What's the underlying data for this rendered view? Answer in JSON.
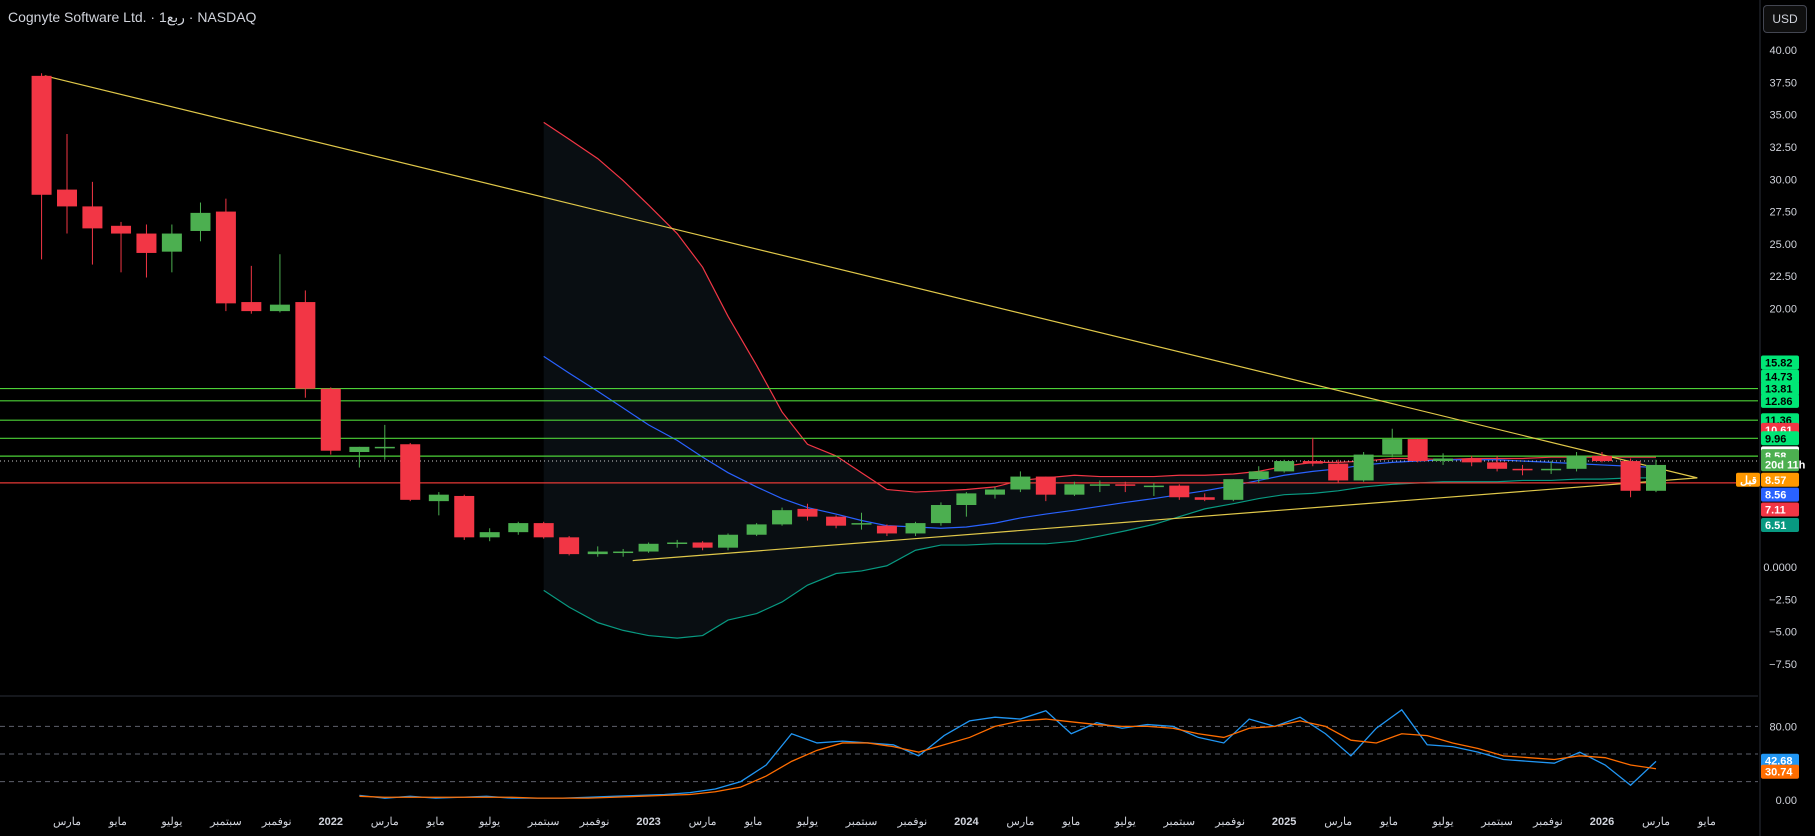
{
  "header": {
    "title": "Cognyte Software Ltd. · 1ربع · NASDAQ",
    "currency": "USD"
  },
  "colors": {
    "background": "#000000",
    "up": "#4caf50",
    "down": "#f23645",
    "trendline": "#e0c84a",
    "support_line": "#4cd137",
    "resistance_line": "#e53935",
    "band_upper": "#f23645",
    "band_mid": "#2962ff",
    "band_lower": "#089981",
    "stoch_k": "#2196f3",
    "stoch_d": "#ff6d00"
  },
  "chart_data": [
    {
      "type": "candlestick",
      "y_ticks": [
        "40.00",
        "37.50",
        "35.00",
        "32.50",
        "30.00",
        "27.50",
        "25.00",
        "22.50",
        "20.00",
        "0.0000",
        "−2.50",
        "−5.00",
        "−7.50"
      ],
      "y_tick_values": [
        40,
        37.5,
        35,
        32.5,
        30,
        27.5,
        25,
        22.5,
        20,
        0,
        -2.5,
        -5,
        -7.5
      ],
      "x_labels": [
        {
          "label": "مارس",
          "x": 2021.17,
          "bold": false
        },
        {
          "label": "مايو",
          "x": 2021.33,
          "bold": false
        },
        {
          "label": "يوليو",
          "x": 2021.5,
          "bold": false
        },
        {
          "label": "سبتمبر",
          "x": 2021.67,
          "bold": false
        },
        {
          "label": "نوفمبر",
          "x": 2021.83,
          "bold": false
        },
        {
          "label": "2022",
          "x": 2022.0,
          "bold": true
        },
        {
          "label": "مارس",
          "x": 2022.17,
          "bold": false
        },
        {
          "label": "مايو",
          "x": 2022.33,
          "bold": false
        },
        {
          "label": "يوليو",
          "x": 2022.5,
          "bold": false
        },
        {
          "label": "سبتمبر",
          "x": 2022.67,
          "bold": false
        },
        {
          "label": "نوفمبر",
          "x": 2022.83,
          "bold": false
        },
        {
          "label": "2023",
          "x": 2023.0,
          "bold": true
        },
        {
          "label": "مارس",
          "x": 2023.17,
          "bold": false
        },
        {
          "label": "مايو",
          "x": 2023.33,
          "bold": false
        },
        {
          "label": "يوليو",
          "x": 2023.5,
          "bold": false
        },
        {
          "label": "سبتمبر",
          "x": 2023.67,
          "bold": false
        },
        {
          "label": "نوفمبر",
          "x": 2023.83,
          "bold": false
        },
        {
          "label": "2024",
          "x": 2024.0,
          "bold": true
        },
        {
          "label": "مارس",
          "x": 2024.17,
          "bold": false
        },
        {
          "label": "مايو",
          "x": 2024.33,
          "bold": false
        },
        {
          "label": "يوليو",
          "x": 2024.5,
          "bold": false
        },
        {
          "label": "سبتمبر",
          "x": 2024.67,
          "bold": false
        },
        {
          "label": "نوفمبر",
          "x": 2024.83,
          "bold": false
        },
        {
          "label": "2025",
          "x": 2025.0,
          "bold": true
        },
        {
          "label": "مارس",
          "x": 2025.17,
          "bold": false
        },
        {
          "label": "مايو",
          "x": 2025.33,
          "bold": false
        },
        {
          "label": "يوليو",
          "x": 2025.5,
          "bold": false
        },
        {
          "label": "سبتمبر",
          "x": 2025.67,
          "bold": false
        },
        {
          "label": "نوفمبر",
          "x": 2025.83,
          "bold": false
        },
        {
          "label": "2026",
          "x": 2026.0,
          "bold": true
        },
        {
          "label": "مارس",
          "x": 2026.17,
          "bold": false
        },
        {
          "label": "مايو",
          "x": 2026.33,
          "bold": false
        }
      ],
      "candles": [
        {
          "x": 2021.09,
          "o": 38.0,
          "h": 38.2,
          "l": 23.8,
          "c": 28.8
        },
        {
          "x": 2021.17,
          "o": 29.2,
          "h": 33.5,
          "l": 25.8,
          "c": 27.9
        },
        {
          "x": 2021.25,
          "o": 27.9,
          "h": 29.8,
          "l": 23.4,
          "c": 26.2
        },
        {
          "x": 2021.34,
          "o": 26.4,
          "h": 26.7,
          "l": 22.8,
          "c": 25.8
        },
        {
          "x": 2021.42,
          "o": 25.8,
          "h": 26.5,
          "l": 22.4,
          "c": 24.3
        },
        {
          "x": 2021.5,
          "o": 24.4,
          "h": 26.5,
          "l": 22.8,
          "c": 25.8
        },
        {
          "x": 2021.59,
          "o": 26.0,
          "h": 28.2,
          "l": 25.2,
          "c": 27.4
        },
        {
          "x": 2021.67,
          "o": 27.5,
          "h": 28.5,
          "l": 19.8,
          "c": 20.4
        },
        {
          "x": 2021.75,
          "o": 20.5,
          "h": 23.3,
          "l": 19.6,
          "c": 19.8
        },
        {
          "x": 2021.84,
          "o": 19.8,
          "h": 24.2,
          "l": 19.7,
          "c": 20.3
        },
        {
          "x": 2021.92,
          "o": 20.5,
          "h": 21.4,
          "l": 13.1,
          "c": 13.8
        },
        {
          "x": 2022.0,
          "o": 13.8,
          "h": 13.9,
          "l": 8.7,
          "c": 9.0
        },
        {
          "x": 2022.09,
          "o": 8.9,
          "h": 9.3,
          "l": 7.7,
          "c": 9.3
        },
        {
          "x": 2022.17,
          "o": 9.3,
          "h": 11.0,
          "l": 8.3,
          "c": 9.3
        },
        {
          "x": 2022.25,
          "o": 9.5,
          "h": 9.6,
          "l": 5.1,
          "c": 5.2
        },
        {
          "x": 2022.34,
          "o": 5.1,
          "h": 5.8,
          "l": 4.0,
          "c": 5.6
        },
        {
          "x": 2022.42,
          "o": 5.5,
          "h": 5.6,
          "l": 2.1,
          "c": 2.3
        },
        {
          "x": 2022.5,
          "o": 2.3,
          "h": 3.0,
          "l": 2.0,
          "c": 2.7
        },
        {
          "x": 2022.59,
          "o": 2.7,
          "h": 3.5,
          "l": 2.5,
          "c": 3.4
        },
        {
          "x": 2022.67,
          "o": 3.4,
          "h": 3.5,
          "l": 2.2,
          "c": 2.3
        },
        {
          "x": 2022.75,
          "o": 2.3,
          "h": 2.4,
          "l": 0.9,
          "c": 1.0
        },
        {
          "x": 2022.84,
          "o": 1.0,
          "h": 1.6,
          "l": 0.8,
          "c": 1.2
        },
        {
          "x": 2022.92,
          "o": 1.2,
          "h": 1.4,
          "l": 0.8,
          "c": 1.2
        },
        {
          "x": 2023.0,
          "o": 1.2,
          "h": 1.9,
          "l": 1.1,
          "c": 1.8
        },
        {
          "x": 2023.09,
          "o": 1.8,
          "h": 2.1,
          "l": 1.5,
          "c": 1.9
        },
        {
          "x": 2023.17,
          "o": 1.9,
          "h": 2.0,
          "l": 1.3,
          "c": 1.5
        },
        {
          "x": 2023.25,
          "o": 1.5,
          "h": 2.6,
          "l": 1.3,
          "c": 2.5
        },
        {
          "x": 2023.34,
          "o": 2.5,
          "h": 3.4,
          "l": 2.4,
          "c": 3.3
        },
        {
          "x": 2023.42,
          "o": 3.3,
          "h": 4.6,
          "l": 3.2,
          "c": 4.4
        },
        {
          "x": 2023.5,
          "o": 4.5,
          "h": 4.9,
          "l": 3.6,
          "c": 3.9
        },
        {
          "x": 2023.59,
          "o": 3.9,
          "h": 4.0,
          "l": 3.0,
          "c": 3.2
        },
        {
          "x": 2023.67,
          "o": 3.3,
          "h": 4.2,
          "l": 2.9,
          "c": 3.4
        },
        {
          "x": 2023.75,
          "o": 3.2,
          "h": 3.3,
          "l": 2.4,
          "c": 2.6
        },
        {
          "x": 2023.84,
          "o": 2.6,
          "h": 3.5,
          "l": 2.4,
          "c": 3.4
        },
        {
          "x": 2023.92,
          "o": 3.4,
          "h": 5.0,
          "l": 3.2,
          "c": 4.8
        },
        {
          "x": 2024.0,
          "o": 4.8,
          "h": 5.8,
          "l": 3.9,
          "c": 5.7
        },
        {
          "x": 2024.09,
          "o": 5.6,
          "h": 6.2,
          "l": 5.3,
          "c": 6.0
        },
        {
          "x": 2024.17,
          "o": 6.0,
          "h": 7.4,
          "l": 5.8,
          "c": 7.0
        },
        {
          "x": 2024.25,
          "o": 7.0,
          "h": 7.0,
          "l": 5.1,
          "c": 5.6
        },
        {
          "x": 2024.34,
          "o": 5.6,
          "h": 6.6,
          "l": 5.5,
          "c": 6.4
        },
        {
          "x": 2024.42,
          "o": 6.4,
          "h": 6.7,
          "l": 5.8,
          "c": 6.4
        },
        {
          "x": 2024.5,
          "o": 6.4,
          "h": 6.6,
          "l": 5.8,
          "c": 6.3
        },
        {
          "x": 2024.59,
          "o": 6.3,
          "h": 6.5,
          "l": 5.5,
          "c": 6.3
        },
        {
          "x": 2024.67,
          "o": 6.3,
          "h": 6.4,
          "l": 5.2,
          "c": 5.4
        },
        {
          "x": 2024.75,
          "o": 5.4,
          "h": 5.7,
          "l": 5.1,
          "c": 5.2
        },
        {
          "x": 2024.84,
          "o": 5.2,
          "h": 6.8,
          "l": 5.1,
          "c": 6.8
        },
        {
          "x": 2024.92,
          "o": 6.8,
          "h": 7.8,
          "l": 6.5,
          "c": 7.4
        },
        {
          "x": 2025.0,
          "o": 7.4,
          "h": 8.3,
          "l": 7.3,
          "c": 8.2
        },
        {
          "x": 2025.09,
          "o": 8.2,
          "h": 10.0,
          "l": 7.8,
          "c": 8.0
        },
        {
          "x": 2025.17,
          "o": 8.0,
          "h": 8.3,
          "l": 6.5,
          "c": 6.7
        },
        {
          "x": 2025.25,
          "o": 6.7,
          "h": 8.9,
          "l": 6.6,
          "c": 8.7
        },
        {
          "x": 2025.34,
          "o": 8.7,
          "h": 10.7,
          "l": 8.5,
          "c": 9.9
        },
        {
          "x": 2025.42,
          "o": 9.9,
          "h": 9.9,
          "l": 8.1,
          "c": 8.2
        },
        {
          "x": 2025.5,
          "o": 8.2,
          "h": 8.8,
          "l": 7.9,
          "c": 8.4
        },
        {
          "x": 2025.59,
          "o": 8.4,
          "h": 8.6,
          "l": 7.8,
          "c": 8.1
        },
        {
          "x": 2025.67,
          "o": 8.1,
          "h": 8.6,
          "l": 7.4,
          "c": 7.6
        },
        {
          "x": 2025.75,
          "o": 7.6,
          "h": 7.9,
          "l": 7.1,
          "c": 7.5
        },
        {
          "x": 2025.84,
          "o": 7.5,
          "h": 8.2,
          "l": 7.2,
          "c": 7.6
        },
        {
          "x": 2025.92,
          "o": 7.6,
          "h": 8.9,
          "l": 7.4,
          "c": 8.6
        },
        {
          "x": 2026.0,
          "o": 8.6,
          "h": 8.9,
          "l": 8.1,
          "c": 8.2
        },
        {
          "x": 2026.09,
          "o": 8.2,
          "h": 8.4,
          "l": 5.4,
          "c": 5.9
        },
        {
          "x": 2026.17,
          "o": 5.9,
          "h": 8.3,
          "l": 5.8,
          "c": 7.9
        }
      ],
      "horizontal_lines": [
        {
          "price": 13.81,
          "color": "#4cd137"
        },
        {
          "price": 12.86,
          "color": "#4cd137"
        },
        {
          "price": 11.36,
          "color": "#4cd137"
        },
        {
          "price": 9.96,
          "color": "#4cd137"
        },
        {
          "price": 8.58,
          "color": "#4cd137"
        },
        {
          "price": 6.51,
          "color": "#e53935"
        }
      ],
      "trendlines": [
        {
          "x1": 2021.1,
          "y1": 38.0,
          "x2": 2026.3,
          "y2": 6.9
        },
        {
          "x1": 2022.95,
          "y1": 0.5,
          "x2": 2026.3,
          "y2": 6.9
        }
      ],
      "bands": {
        "x": [
          2022.67,
          2022.75,
          2022.84,
          2022.92,
          2023.0,
          2023.09,
          2023.17,
          2023.25,
          2023.34,
          2023.42,
          2023.5,
          2023.59,
          2023.67,
          2023.75,
          2023.84,
          2023.92,
          2024.0,
          2024.09,
          2024.17,
          2024.25,
          2024.34,
          2024.42,
          2024.5,
          2024.59,
          2024.67,
          2024.75,
          2024.84,
          2024.92,
          2025.0,
          2025.09,
          2025.17,
          2025.25,
          2025.34,
          2025.42,
          2025.5,
          2025.59,
          2025.67,
          2025.75,
          2025.84,
          2025.92,
          2026.0,
          2026.09,
          2026.17
        ],
        "upper": [
          34.4,
          33.1,
          31.6,
          29.9,
          28.0,
          25.8,
          23.2,
          19.4,
          15.6,
          12.0,
          9.5,
          8.6,
          7.3,
          6.0,
          5.8,
          5.9,
          6.0,
          6.2,
          6.7,
          6.9,
          7.1,
          7.0,
          7.0,
          7.0,
          7.1,
          7.1,
          7.2,
          7.4,
          7.8,
          8.1,
          8.1,
          8.2,
          8.4,
          8.4,
          8.3,
          8.4,
          8.4,
          8.4,
          8.5,
          8.5,
          8.5,
          8.5,
          8.5
        ],
        "mid": [
          16.3,
          15.0,
          13.6,
          12.3,
          11.0,
          9.8,
          8.5,
          7.3,
          6.2,
          5.3,
          4.6,
          4.1,
          3.6,
          3.2,
          3.1,
          3.0,
          3.1,
          3.4,
          3.8,
          4.1,
          4.4,
          4.7,
          5.0,
          5.3,
          5.6,
          5.9,
          6.3,
          6.7,
          7.1,
          7.4,
          7.6,
          7.9,
          8.1,
          8.2,
          8.3,
          8.3,
          8.3,
          8.2,
          8.1,
          8.0,
          7.9,
          7.8,
          7.7
        ],
        "lower": [
          -1.8,
          -3.1,
          -4.3,
          -4.9,
          -5.3,
          -5.5,
          -5.3,
          -4.1,
          -3.6,
          -2.7,
          -1.4,
          -0.5,
          -0.3,
          0.1,
          1.3,
          1.7,
          1.7,
          1.8,
          1.8,
          1.8,
          2.0,
          2.4,
          2.8,
          3.3,
          3.9,
          4.5,
          4.9,
          5.3,
          5.6,
          5.7,
          5.9,
          6.2,
          6.4,
          6.5,
          6.6,
          6.6,
          6.6,
          6.7,
          6.7,
          6.8,
          6.8,
          6.9,
          6.9
        ]
      },
      "price_badges": [
        {
          "label": "15.82",
          "price": 15.82,
          "bg": "#00e676",
          "fg": "#000000"
        },
        {
          "label": "14.73",
          "price": 14.73,
          "bg": "#00e676",
          "fg": "#000000"
        },
        {
          "label": "13.81",
          "price": 13.81,
          "bg": "#00e676",
          "fg": "#000000"
        },
        {
          "label": "12.86",
          "price": 12.86,
          "bg": "#00e676",
          "fg": "#000000"
        },
        {
          "label": "11.36",
          "price": 11.36,
          "bg": "#00e676",
          "fg": "#000000"
        },
        {
          "label": "10.61",
          "price": 10.61,
          "bg": "#f23645",
          "fg": "#ffffff"
        },
        {
          "label": "9.96",
          "price": 9.96,
          "bg": "#00e676",
          "fg": "#000000"
        },
        {
          "label": "8.79",
          "price": 8.79,
          "bg": "#ffffff",
          "fg": "#000000"
        },
        {
          "label": "8.58",
          "price": 8.58,
          "bg": "#4caf50",
          "fg": "#ffffff"
        },
        {
          "label": "20d 11h",
          "price": 7.95,
          "bg": "#4caf50",
          "fg": "#ffffff"
        },
        {
          "label": "8.57",
          "price": 6.75,
          "bg": "#ff9800",
          "fg": "#ffffff"
        },
        {
          "label": "8.56",
          "price": 5.6,
          "bg": "#2962ff",
          "fg": "#ffffff"
        },
        {
          "label": "7.11",
          "price": 4.45,
          "bg": "#f23645",
          "fg": "#ffffff"
        },
        {
          "label": "6.51",
          "price": 3.25,
          "bg": "#089981",
          "fg": "#ffffff"
        }
      ],
      "side_label": "قبل"
    },
    {
      "type": "line",
      "y_ticks": [
        "80.00",
        "0.00"
      ],
      "y_tick_values": [
        80,
        0
      ],
      "dashed_levels": [
        80,
        50,
        20
      ],
      "series": [
        {
          "values": [
            5,
            2,
            4,
            2,
            3,
            4,
            2,
            2,
            2,
            3,
            4,
            5,
            6,
            8,
            12,
            20,
            38,
            72,
            62,
            64,
            62,
            60,
            48,
            70,
            86,
            90,
            88,
            97,
            72,
            84,
            78,
            82,
            80,
            68,
            62,
            88,
            80,
            90,
            72,
            48,
            78,
            98,
            60,
            58,
            52,
            44,
            42,
            40,
            52,
            38,
            16,
            42
          ]
        },
        {
          "values": [
            4,
            3,
            3,
            3,
            3,
            3,
            3,
            2,
            2,
            2,
            3,
            4,
            5,
            6,
            9,
            14,
            26,
            42,
            54,
            62,
            62,
            58,
            52,
            60,
            68,
            80,
            86,
            88,
            85,
            82,
            80,
            80,
            78,
            72,
            68,
            78,
            80,
            86,
            80,
            65,
            62,
            72,
            70,
            62,
            56,
            48,
            46,
            44,
            48,
            46,
            38,
            34
          ]
        }
      ],
      "y_min": 0,
      "y_max": 100,
      "badges": [
        {
          "label": "42.68",
          "value": 42.68,
          "bg": "#2196f3"
        },
        {
          "label": "30.74",
          "value": 30.74,
          "bg": "#ff6d00"
        }
      ]
    }
  ]
}
